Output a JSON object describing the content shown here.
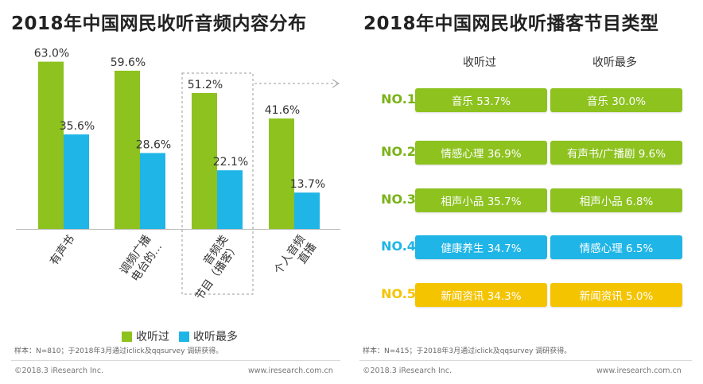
{
  "left_title": "2018年中国网民收听音频内容分布",
  "right_title": "2018年中国网民收听播客节目类型",
  "colors": {
    "listened": "#8dc21f",
    "most": "#1fb5e6",
    "rank_green": "#7ab317",
    "rank_blue": "#1fb5e6",
    "rank_yellow": "#f5c400"
  },
  "chart_data": {
    "type": "bar",
    "categories": [
      "有声书",
      "调频广播电台的...",
      "音频类节目（播客）",
      "个人音频直播"
    ],
    "category_lines": [
      [
        "有声书"
      ],
      [
        "调频广播",
        "电台的..."
      ],
      [
        "音频类",
        "节目（播客）"
      ],
      [
        "个人音频",
        "直播"
      ]
    ],
    "series": [
      {
        "name": "收听过",
        "values": [
          63.0,
          59.6,
          51.2,
          41.6
        ],
        "labels": [
          "63.0%",
          "59.6%",
          "51.2%",
          "41.6%"
        ]
      },
      {
        "name": "收听最多",
        "values": [
          35.6,
          28.6,
          22.1,
          13.7
        ],
        "labels": [
          "35.6%",
          "28.6%",
          "22.1%",
          "13.7%"
        ]
      }
    ],
    "ylim": [
      0,
      70
    ],
    "legend": "bottom"
  },
  "left_note": "样本：N=810；于2018年3月通过iclick及qqsurvey 调研获得。",
  "left_copyright": "©2018.3 iResearch Inc.",
  "left_site": "www.iresearch.com.cn",
  "table": {
    "col_listened": "收听过",
    "col_most": "收听最多",
    "rows": [
      {
        "rank": "NO.1",
        "listened": "音乐 53.7%",
        "most": "音乐 30.0%",
        "color": "green"
      },
      {
        "rank": "NO.2",
        "listened": "情感心理 36.9%",
        "most": "有声书/广播剧 9.6%",
        "color": "green"
      },
      {
        "rank": "NO.3",
        "listened": "相声小品 35.7%",
        "most": "相声小品 6.8%",
        "color": "green"
      },
      {
        "rank": "NO.4",
        "listened": "健康养生 34.7%",
        "most": "情感心理 6.5%",
        "color": "blue"
      },
      {
        "rank": "NO.5",
        "listened": "新闻资讯 34.3%",
        "most": "新闻资讯 5.0%",
        "color": "yellow"
      }
    ]
  },
  "right_note": "样本：N=415；于2018年3月通过iclick及qqsurvey 调研获得。",
  "right_copyright": "©2018.3 iResearch Inc.",
  "right_site": "www.iresearch.com.cn"
}
